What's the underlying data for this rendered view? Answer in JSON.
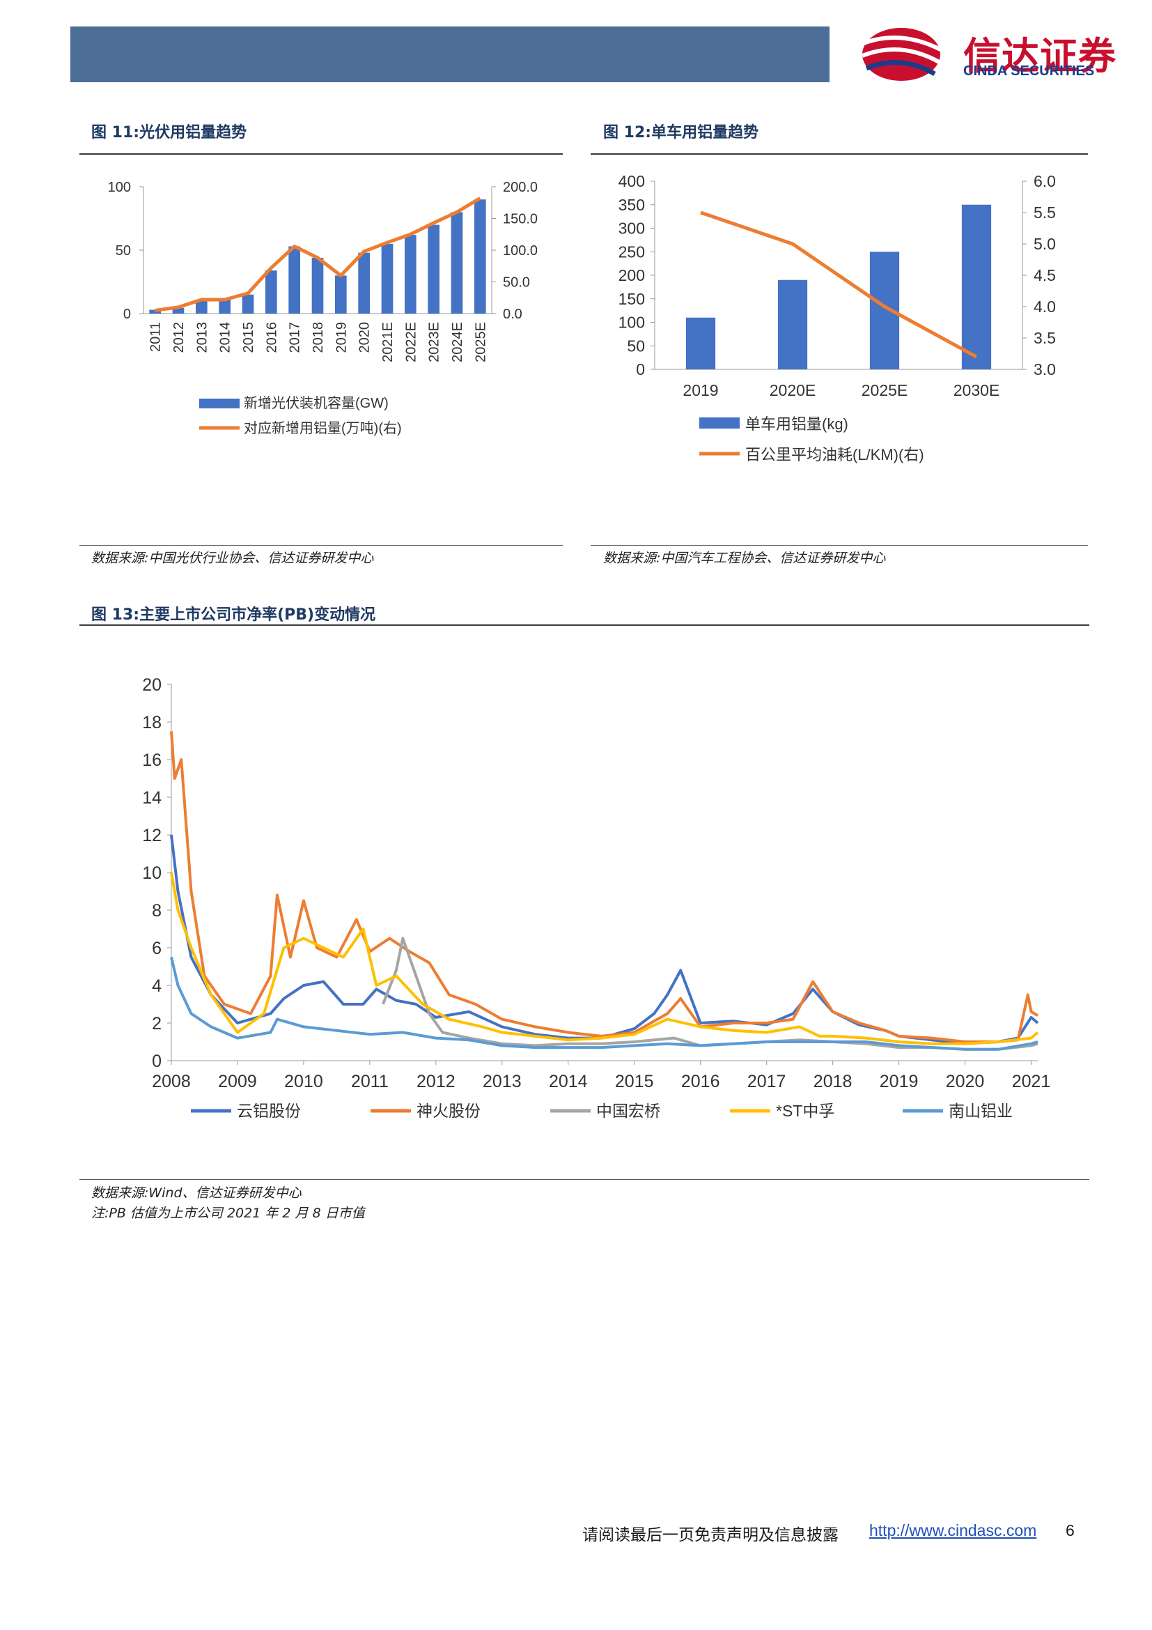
{
  "header": {
    "logo_cn": "信达证券",
    "logo_en": "CINDA SECURITIES",
    "accent": "#c8102e",
    "bar_color": "#4d6e96"
  },
  "fig11": {
    "title": "图 11:光伏用铝量趋势",
    "source": "数据来源:中国光伏行业协会、信达证券研发中心",
    "legend_bar": "新增光伏装机容量(GW)",
    "legend_line": "对应新增用铝量(万吨)(右)"
  },
  "fig12": {
    "title": "图 12:单车用铝量趋势",
    "source": "数据来源:中国汽车工程协会、信达证券研发中心",
    "legend_bar": "单车用铝量(kg)",
    "legend_line": "百公里平均油耗(L/KM)(右)"
  },
  "fig13": {
    "title": "图 13:主要上市公司市净率(PB)变动情况",
    "source": "数据来源:Wind、信达证券研发中心",
    "note": "注:PB 估值为上市公司 2021 年 2 月 8 日市值"
  },
  "footer": {
    "disclaimer": "请阅读最后一页免责声明及信息披露",
    "url": "http://www.cindasc.com",
    "page": "6"
  },
  "chart_data": [
    {
      "type": "bar",
      "categories": [
        "2011",
        "2012",
        "2013",
        "2014",
        "2015",
        "2016",
        "2017",
        "2018",
        "2019",
        "2020",
        "2021E",
        "2022E",
        "2023E",
        "2024E",
        "2025E"
      ],
      "series": [
        {
          "name": "新增光伏装机容量(GW)",
          "type": "bar",
          "axis": "left",
          "values": [
            3,
            4.5,
            11,
            11,
            15,
            34,
            53,
            44,
            30,
            48,
            55,
            62,
            70,
            80,
            90
          ],
          "color": "#4472c4"
        },
        {
          "name": "对应新增用铝量(万吨)(右)",
          "type": "line",
          "axis": "right",
          "values": [
            5,
            10,
            22,
            22,
            32,
            72,
            106,
            88,
            60,
            98,
            112,
            125,
            143,
            160,
            182
          ],
          "color": "#ed7d31"
        }
      ],
      "y_left": {
        "ylim": [
          0,
          100
        ],
        "ticks": [
          "0",
          "50",
          "100"
        ]
      },
      "y_right": {
        "ylim": [
          0,
          200
        ],
        "ticks": [
          "0.0",
          "50.0",
          "100.0",
          "150.0",
          "200.0"
        ]
      }
    },
    {
      "type": "bar",
      "categories": [
        "2019",
        "2020E",
        "2025E",
        "2030E"
      ],
      "series": [
        {
          "name": "单车用铝量(kg)",
          "type": "bar",
          "axis": "left",
          "values": [
            110,
            190,
            250,
            350
          ],
          "color": "#4472c4"
        },
        {
          "name": "百公里平均油耗(L/KM)(右)",
          "type": "line",
          "axis": "right",
          "values": [
            5.5,
            5.0,
            4.0,
            3.2
          ],
          "color": "#ed7d31"
        }
      ],
      "y_left": {
        "ylim": [
          0,
          400
        ],
        "ticks": [
          "0",
          "50",
          "100",
          "150",
          "200",
          "250",
          "300",
          "350",
          "400"
        ]
      },
      "y_right": {
        "ylim": [
          3.0,
          6.0
        ],
        "ticks": [
          "3.0",
          "3.5",
          "4.0",
          "4.5",
          "5.0",
          "5.5",
          "6.0"
        ]
      }
    },
    {
      "type": "line",
      "x_ticks": [
        "2008",
        "2009",
        "2010",
        "2011",
        "2012",
        "2013",
        "2014",
        "2015",
        "2016",
        "2017",
        "2018",
        "2019",
        "2020",
        "2021"
      ],
      "xlim": [
        2008,
        2021.1
      ],
      "ylim": [
        0,
        20
      ],
      "y_ticks": [
        "0",
        "2",
        "4",
        "6",
        "8",
        "10",
        "12",
        "14",
        "16",
        "18",
        "20"
      ],
      "series": [
        {
          "name": "云铝股份",
          "color": "#4472c4",
          "x": [
            2008,
            2008.1,
            2008.3,
            2008.6,
            2009,
            2009.5,
            2009.7,
            2010,
            2010.3,
            2010.6,
            2010.9,
            2011.1,
            2011.4,
            2011.7,
            2012,
            2012.5,
            2013,
            2013.5,
            2014,
            2014.5,
            2015,
            2015.3,
            2015.5,
            2015.7,
            2016,
            2016.5,
            2017,
            2017.4,
            2017.7,
            2018,
            2018.4,
            2018.8,
            2019,
            2019.5,
            2020,
            2020.5,
            2020.8,
            2021,
            2021.1
          ],
          "y": [
            12,
            9,
            5.5,
            3.5,
            2,
            2.5,
            3.3,
            4,
            4.2,
            3,
            3,
            3.8,
            3.2,
            3,
            2.3,
            2.6,
            1.8,
            1.4,
            1.2,
            1.2,
            1.7,
            2.5,
            3.5,
            4.8,
            2,
            2.1,
            1.9,
            2.5,
            3.8,
            2.6,
            1.9,
            1.6,
            1.3,
            1.1,
            0.9,
            1,
            1.2,
            2.3,
            2
          ]
        },
        {
          "name": "神火股份",
          "color": "#ed7d31",
          "x": [
            2008,
            2008.05,
            2008.15,
            2008.3,
            2008.5,
            2008.8,
            2009.2,
            2009.5,
            2009.6,
            2009.8,
            2010,
            2010.2,
            2010.5,
            2010.8,
            2011,
            2011.3,
            2011.6,
            2011.9,
            2012.2,
            2012.6,
            2013,
            2013.5,
            2014,
            2014.5,
            2015,
            2015.5,
            2015.7,
            2016,
            2016.5,
            2017,
            2017.4,
            2017.7,
            2018,
            2018.4,
            2018.8,
            2019,
            2019.5,
            2020,
            2020.5,
            2020.8,
            2020.95,
            2021,
            2021.1
          ],
          "y": [
            17.5,
            15,
            16,
            9,
            4.5,
            3,
            2.5,
            4.5,
            8.8,
            5.5,
            8.5,
            6,
            5.5,
            7.5,
            5.8,
            6.5,
            5.8,
            5.2,
            3.5,
            3,
            2.2,
            1.8,
            1.5,
            1.3,
            1.5,
            2.5,
            3.3,
            1.8,
            2,
            2,
            2.2,
            4.2,
            2.6,
            2,
            1.6,
            1.3,
            1.2,
            1,
            1,
            1.1,
            3.5,
            2.6,
            2.4
          ]
        },
        {
          "name": "中国宏桥",
          "color": "#a5a5a5",
          "x": [
            2011.2,
            2011.4,
            2011.5,
            2011.7,
            2011.9,
            2012.1,
            2012.5,
            2013,
            2013.5,
            2014,
            2014.5,
            2015,
            2015.3,
            2015.6,
            2016,
            2016.5,
            2017,
            2017.5,
            2018,
            2018.5,
            2019,
            2019.5,
            2020,
            2020.5,
            2021,
            2021.1
          ],
          "y": [
            3,
            4.8,
            6.5,
            4.5,
            2.5,
            1.5,
            1.2,
            0.9,
            0.8,
            0.9,
            0.9,
            1,
            1.1,
            1.2,
            0.8,
            0.9,
            1,
            1.1,
            1,
            0.9,
            0.7,
            0.7,
            0.6,
            0.6,
            0.8,
            0.9
          ]
        },
        {
          "name": "*ST中孚",
          "color": "#ffc000",
          "x": [
            2008,
            2008.1,
            2008.3,
            2008.6,
            2009,
            2009.4,
            2009.7,
            2010,
            2010.3,
            2010.6,
            2010.9,
            2011.1,
            2011.4,
            2011.8,
            2012.2,
            2012.7,
            2013,
            2013.5,
            2014,
            2014.5,
            2015,
            2015.5,
            2016,
            2016.5,
            2017,
            2017.5,
            2017.8,
            2018,
            2018.5,
            2019,
            2019.5,
            2020,
            2020.5,
            2021,
            2021.1
          ],
          "y": [
            10,
            8,
            6,
            3.5,
            1.5,
            2.5,
            6,
            6.5,
            6,
            5.5,
            7,
            4,
            4.5,
            3,
            2.2,
            1.8,
            1.5,
            1.3,
            1.1,
            1.2,
            1.4,
            2.2,
            1.8,
            1.6,
            1.5,
            1.8,
            1.3,
            1.3,
            1.2,
            1,
            0.9,
            0.9,
            1,
            1.2,
            1.5
          ]
        },
        {
          "name": "南山铝业",
          "color": "#5b9bd5",
          "x": [
            2008,
            2008.1,
            2008.3,
            2008.6,
            2009,
            2009.5,
            2009.6,
            2010,
            2010.5,
            2011,
            2011.5,
            2012,
            2012.5,
            2013,
            2013.5,
            2014,
            2014.5,
            2015,
            2015.5,
            2016,
            2016.5,
            2017,
            2017.5,
            2018,
            2018.5,
            2019,
            2019.5,
            2020,
            2020.5,
            2021,
            2021.1
          ],
          "y": [
            5.5,
            4,
            2.5,
            1.8,
            1.2,
            1.5,
            2.2,
            1.8,
            1.6,
            1.4,
            1.5,
            1.2,
            1.1,
            0.8,
            0.7,
            0.7,
            0.7,
            0.8,
            0.9,
            0.8,
            0.9,
            1,
            1,
            1,
            1,
            0.8,
            0.7,
            0.6,
            0.6,
            0.9,
            1
          ]
        }
      ]
    }
  ]
}
